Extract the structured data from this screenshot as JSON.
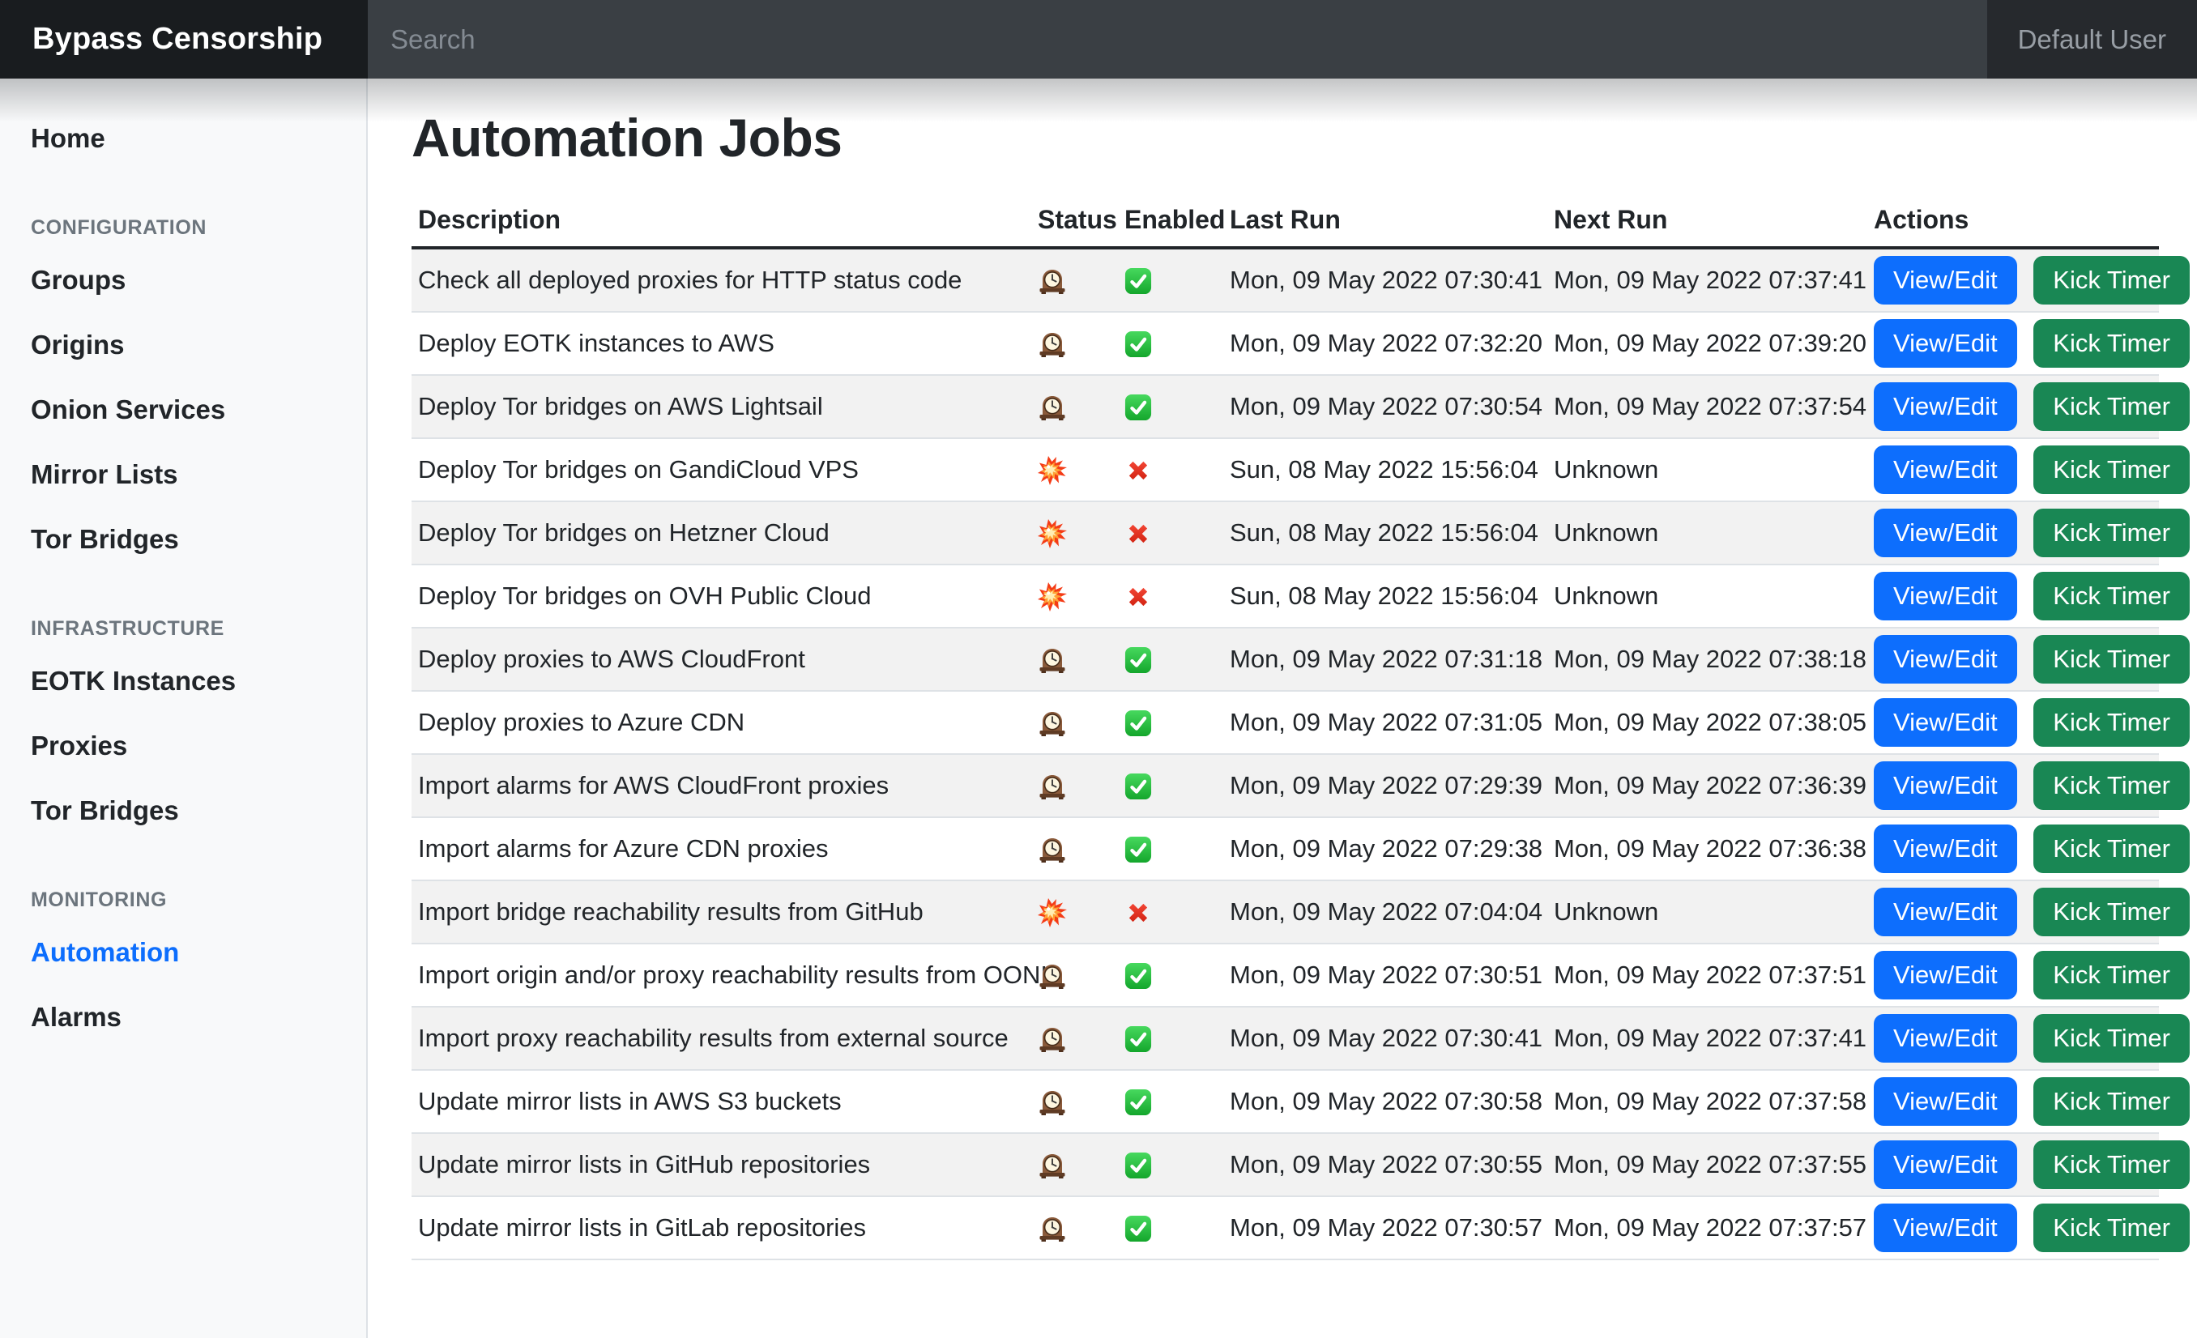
{
  "topbar": {
    "brand": "Bypass Censorship",
    "search_placeholder": "Search",
    "user": "Default User"
  },
  "sidebar": {
    "items": [
      {
        "type": "link",
        "label": "Home",
        "active": false
      },
      {
        "type": "header",
        "label": "CONFIGURATION"
      },
      {
        "type": "link",
        "label": "Groups",
        "active": false
      },
      {
        "type": "link",
        "label": "Origins",
        "active": false
      },
      {
        "type": "link",
        "label": "Onion Services",
        "active": false
      },
      {
        "type": "link",
        "label": "Mirror Lists",
        "active": false
      },
      {
        "type": "link",
        "label": "Tor Bridges",
        "active": false
      },
      {
        "type": "header",
        "label": "INFRASTRUCTURE"
      },
      {
        "type": "link",
        "label": "EOTK Instances",
        "active": false
      },
      {
        "type": "link",
        "label": "Proxies",
        "active": false
      },
      {
        "type": "link",
        "label": "Tor Bridges",
        "active": false
      },
      {
        "type": "header",
        "label": "MONITORING"
      },
      {
        "type": "link",
        "label": "Automation",
        "active": true
      },
      {
        "type": "link",
        "label": "Alarms",
        "active": false
      }
    ]
  },
  "page": {
    "title": "Automation Jobs"
  },
  "table": {
    "columns": [
      "Description",
      "Status",
      "Enabled",
      "Last Run",
      "Next Run",
      "Actions"
    ],
    "actions": {
      "view_edit": "View/Edit",
      "kick_timer": "Kick Timer"
    },
    "status_icons": {
      "ok": "mantel-clock-icon",
      "error": "collision-icon"
    },
    "enabled_icons": {
      "true": "check-mark-icon",
      "false": "cross-mark-icon"
    },
    "rows": [
      {
        "description": "Check all deployed proxies for HTTP status code",
        "status": "ok",
        "enabled": true,
        "last_run": "Mon, 09 May 2022 07:30:41",
        "next_run": "Mon, 09 May 2022 07:37:41"
      },
      {
        "description": "Deploy EOTK instances to AWS",
        "status": "ok",
        "enabled": true,
        "last_run": "Mon, 09 May 2022 07:32:20",
        "next_run": "Mon, 09 May 2022 07:39:20"
      },
      {
        "description": "Deploy Tor bridges on AWS Lightsail",
        "status": "ok",
        "enabled": true,
        "last_run": "Mon, 09 May 2022 07:30:54",
        "next_run": "Mon, 09 May 2022 07:37:54"
      },
      {
        "description": "Deploy Tor bridges on GandiCloud VPS",
        "status": "error",
        "enabled": false,
        "last_run": "Sun, 08 May 2022 15:56:04",
        "next_run": "Unknown"
      },
      {
        "description": "Deploy Tor bridges on Hetzner Cloud",
        "status": "error",
        "enabled": false,
        "last_run": "Sun, 08 May 2022 15:56:04",
        "next_run": "Unknown"
      },
      {
        "description": "Deploy Tor bridges on OVH Public Cloud",
        "status": "error",
        "enabled": false,
        "last_run": "Sun, 08 May 2022 15:56:04",
        "next_run": "Unknown"
      },
      {
        "description": "Deploy proxies to AWS CloudFront",
        "status": "ok",
        "enabled": true,
        "last_run": "Mon, 09 May 2022 07:31:18",
        "next_run": "Mon, 09 May 2022 07:38:18"
      },
      {
        "description": "Deploy proxies to Azure CDN",
        "status": "ok",
        "enabled": true,
        "last_run": "Mon, 09 May 2022 07:31:05",
        "next_run": "Mon, 09 May 2022 07:38:05"
      },
      {
        "description": "Import alarms for AWS CloudFront proxies",
        "status": "ok",
        "enabled": true,
        "last_run": "Mon, 09 May 2022 07:29:39",
        "next_run": "Mon, 09 May 2022 07:36:39"
      },
      {
        "description": "Import alarms for Azure CDN proxies",
        "status": "ok",
        "enabled": true,
        "last_run": "Mon, 09 May 2022 07:29:38",
        "next_run": "Mon, 09 May 2022 07:36:38"
      },
      {
        "description": "Import bridge reachability results from GitHub",
        "status": "error",
        "enabled": false,
        "last_run": "Mon, 09 May 2022 07:04:04",
        "next_run": "Unknown"
      },
      {
        "description": "Import origin and/or proxy reachability results from OONI",
        "status": "ok",
        "enabled": true,
        "last_run": "Mon, 09 May 2022 07:30:51",
        "next_run": "Mon, 09 May 2022 07:37:51"
      },
      {
        "description": "Import proxy reachability results from external source",
        "status": "ok",
        "enabled": true,
        "last_run": "Mon, 09 May 2022 07:30:41",
        "next_run": "Mon, 09 May 2022 07:37:41"
      },
      {
        "description": "Update mirror lists in AWS S3 buckets",
        "status": "ok",
        "enabled": true,
        "last_run": "Mon, 09 May 2022 07:30:58",
        "next_run": "Mon, 09 May 2022 07:37:58"
      },
      {
        "description": "Update mirror lists in GitHub repositories",
        "status": "ok",
        "enabled": true,
        "last_run": "Mon, 09 May 2022 07:30:55",
        "next_run": "Mon, 09 May 2022 07:37:55"
      },
      {
        "description": "Update mirror lists in GitLab repositories",
        "status": "ok",
        "enabled": true,
        "last_run": "Mon, 09 May 2022 07:30:57",
        "next_run": "Mon, 09 May 2022 07:37:57"
      }
    ]
  },
  "colors": {
    "primary_button": "#0d6efd",
    "success_button": "#198754",
    "active_link": "#0d6efd",
    "brand_bg": "#191c1f",
    "navbar_bg": "#26292d",
    "search_bg": "#3a3f44",
    "sidebar_bg": "#f8f9fa",
    "stripe_row": "#f2f2f2",
    "cross_red": "#e02b1d",
    "check_green": "#2dc937"
  }
}
